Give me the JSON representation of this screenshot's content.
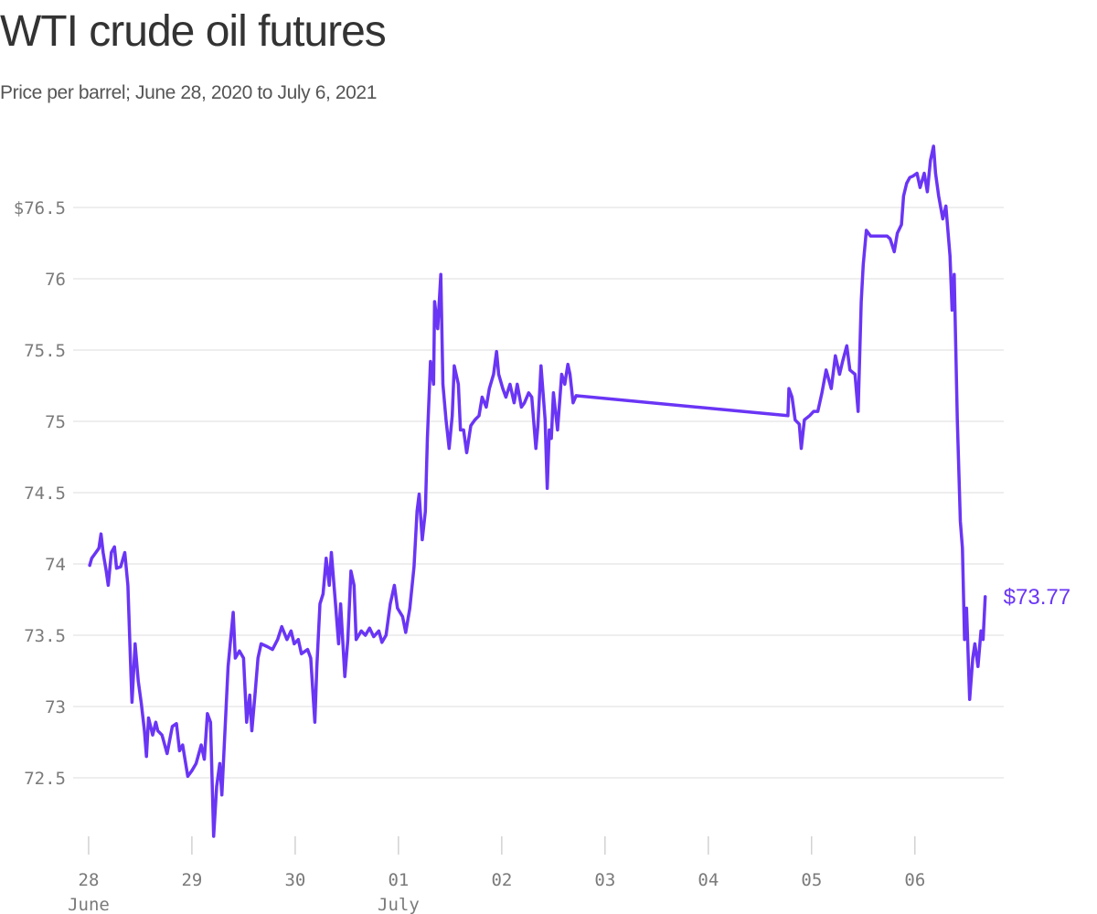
{
  "chart_data": {
    "type": "line",
    "title": "WTI crude oil futures",
    "subtitle": "Price per barrel; June 28, 2020 to July 6, 2021",
    "color": "#6a35f5",
    "grid": true,
    "xlim": [
      -0.15,
      8.86
    ],
    "ylim": [
      72.0,
      77.0
    ],
    "xticks": [
      {
        "value": 0,
        "label": "28"
      },
      {
        "value": 1,
        "label": "29"
      },
      {
        "value": 2,
        "label": "30"
      },
      {
        "value": 3,
        "label": "01"
      },
      {
        "value": 4,
        "label": "02"
      },
      {
        "value": 5,
        "label": "03"
      },
      {
        "value": 6,
        "label": "04"
      },
      {
        "value": 7,
        "label": "05"
      },
      {
        "value": 8,
        "label": "06"
      }
    ],
    "month_labels": [
      {
        "value": 0,
        "label": "June"
      },
      {
        "value": 3,
        "label": "July"
      }
    ],
    "yticks": [
      72.5,
      73,
      73.5,
      74,
      74.5,
      75,
      75.5,
      76,
      {
        "value": 76.5,
        "label": "$76.5"
      }
    ],
    "end_label": "$73.77",
    "x": [
      0.01,
      0.03,
      0.06,
      0.1,
      0.12,
      0.14,
      0.17,
      0.19,
      0.22,
      0.25,
      0.27,
      0.31,
      0.35,
      0.38,
      0.41,
      0.42,
      0.45,
      0.48,
      0.51,
      0.54,
      0.56,
      0.58,
      0.62,
      0.65,
      0.67,
      0.71,
      0.76,
      0.81,
      0.85,
      0.88,
      0.91,
      0.96,
      1.0,
      1.04,
      1.09,
      1.12,
      1.15,
      1.18,
      1.21,
      1.24,
      1.27,
      1.29,
      1.32,
      1.35,
      1.4,
      1.42,
      1.46,
      1.5,
      1.53,
      1.56,
      1.58,
      1.61,
      1.64,
      1.67,
      1.73,
      1.78,
      1.83,
      1.87,
      1.92,
      1.96,
      1.99,
      2.03,
      2.06,
      2.12,
      2.15,
      2.19,
      2.21,
      2.24,
      2.27,
      2.3,
      2.33,
      2.35,
      2.39,
      2.42,
      2.44,
      2.48,
      2.51,
      2.54,
      2.57,
      2.59,
      2.64,
      2.68,
      2.72,
      2.76,
      2.81,
      2.84,
      2.88,
      2.92,
      2.96,
      2.99,
      3.04,
      3.07,
      3.11,
      3.15,
      3.18,
      3.2,
      3.23,
      3.26,
      3.28,
      3.31,
      3.34,
      3.35,
      3.38,
      3.41,
      3.43,
      3.46,
      3.49,
      3.52,
      3.54,
      3.58,
      3.6,
      3.63,
      3.66,
      3.7,
      3.74,
      3.78,
      3.81,
      3.85,
      3.88,
      3.92,
      3.95,
      3.97,
      4.01,
      4.04,
      4.08,
      4.12,
      4.15,
      4.19,
      4.22,
      4.26,
      4.29,
      4.33,
      4.35,
      4.38,
      4.42,
      4.44,
      4.46,
      4.48,
      4.5,
      4.54,
      4.58,
      4.61,
      4.64,
      4.66,
      4.69,
      4.72,
      6.77,
      6.78,
      6.81,
      6.84,
      6.88,
      6.9,
      6.93,
      6.98,
      7.02,
      7.06,
      7.1,
      7.14,
      7.19,
      7.23,
      7.27,
      7.3,
      7.34,
      7.37,
      7.42,
      7.45,
      7.48,
      7.5,
      7.53,
      7.57,
      7.64,
      7.73,
      7.76,
      7.8,
      7.83,
      7.87,
      7.89,
      7.92,
      7.95,
      7.98,
      8.02,
      8.05,
      8.09,
      8.12,
      8.15,
      8.18,
      8.2,
      8.23,
      8.27,
      8.3,
      8.34,
      8.36,
      8.38,
      8.41,
      8.44,
      8.46,
      8.48,
      8.5,
      8.53,
      8.56,
      8.58,
      8.61,
      8.64,
      8.66,
      8.68
    ],
    "values": [
      73.99,
      74.04,
      74.07,
      74.11,
      74.21,
      74.08,
      73.95,
      73.85,
      74.08,
      74.12,
      73.97,
      73.98,
      74.08,
      73.85,
      73.21,
      73.03,
      73.44,
      73.18,
      73.02,
      72.83,
      72.65,
      72.92,
      72.8,
      72.89,
      72.83,
      72.8,
      72.67,
      72.86,
      72.88,
      72.69,
      72.73,
      72.51,
      72.55,
      72.6,
      72.73,
      72.63,
      72.95,
      72.89,
      72.09,
      72.44,
      72.6,
      72.38,
      72.83,
      73.28,
      73.66,
      73.34,
      73.39,
      73.34,
      72.89,
      73.08,
      72.83,
      73.08,
      73.34,
      73.44,
      73.42,
      73.4,
      73.47,
      73.56,
      73.47,
      73.53,
      73.44,
      73.47,
      73.37,
      73.4,
      73.34,
      72.89,
      73.28,
      73.72,
      73.79,
      74.04,
      73.85,
      74.08,
      73.72,
      73.44,
      73.72,
      73.21,
      73.47,
      73.95,
      73.85,
      73.47,
      73.53,
      73.5,
      73.55,
      73.49,
      73.53,
      73.45,
      73.5,
      73.72,
      73.85,
      73.69,
      73.63,
      73.52,
      73.69,
      73.98,
      74.37,
      74.49,
      74.17,
      74.37,
      74.88,
      75.42,
      75.26,
      75.84,
      75.65,
      76.03,
      75.26,
      75.01,
      74.81,
      75.04,
      75.39,
      75.26,
      74.94,
      74.94,
      74.78,
      74.97,
      75.01,
      75.04,
      75.17,
      75.1,
      75.23,
      75.33,
      75.49,
      75.33,
      75.23,
      75.17,
      75.26,
      75.13,
      75.26,
      75.1,
      75.13,
      75.2,
      75.17,
      74.81,
      74.97,
      75.39,
      75.01,
      74.53,
      74.94,
      74.88,
      75.2,
      74.94,
      75.33,
      75.26,
      75.4,
      75.33,
      75.13,
      75.18,
      75.04,
      75.23,
      75.17,
      75.01,
      74.98,
      74.81,
      75.01,
      75.04,
      75.07,
      75.07,
      75.2,
      75.36,
      75.23,
      75.46,
      75.33,
      75.42,
      75.53,
      75.36,
      75.33,
      75.07,
      75.84,
      76.1,
      76.34,
      76.3,
      76.3,
      76.3,
      76.28,
      76.19,
      76.32,
      76.38,
      76.58,
      76.67,
      76.71,
      76.72,
      76.74,
      76.64,
      76.74,
      76.61,
      76.83,
      76.93,
      76.74,
      76.58,
      76.42,
      76.51,
      76.16,
      75.78,
      76.03,
      75.01,
      74.3,
      74.11,
      73.47,
      73.69,
      73.05,
      73.34,
      73.44,
      73.28,
      73.53,
      73.47,
      73.77
    ]
  }
}
